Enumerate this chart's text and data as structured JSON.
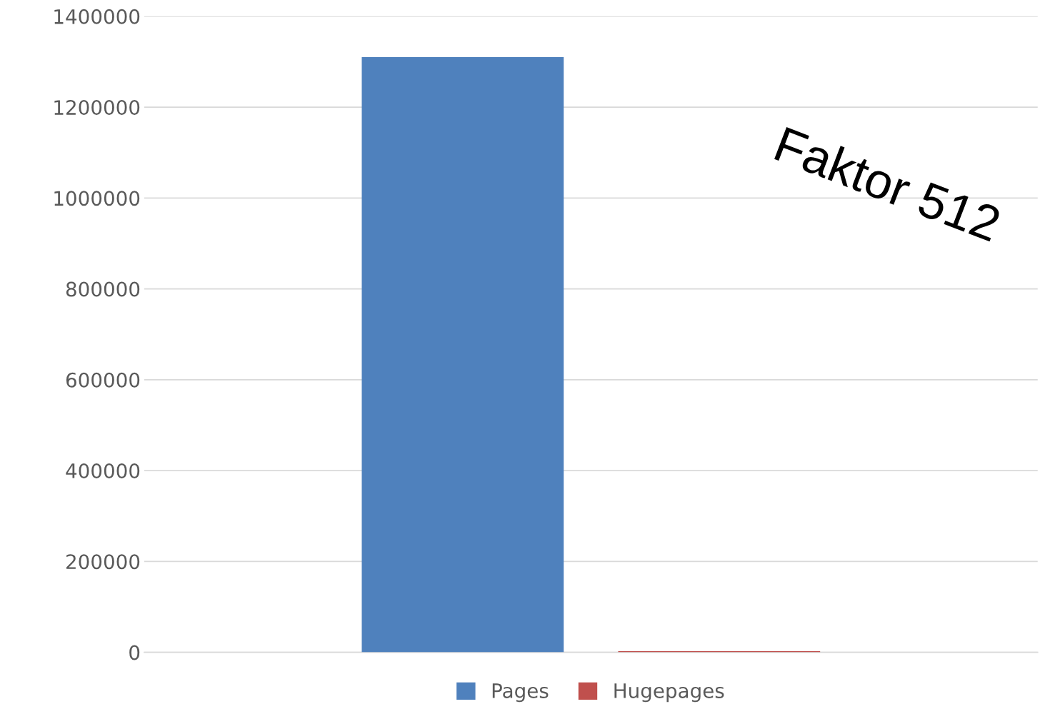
{
  "chart_data": {
    "type": "bar",
    "categories": [
      null
    ],
    "series": [
      {
        "name": "Pages",
        "color": "#4f81bd",
        "values": [
          1310000
        ]
      },
      {
        "name": "Hugepages",
        "color": "#c0504d",
        "values": [
          2560
        ]
      }
    ],
    "ylim": [
      0,
      1400000
    ],
    "yticks": [
      0,
      200000,
      400000,
      600000,
      800000,
      1000000,
      1200000,
      1400000
    ],
    "grid": "y",
    "legend": "bottom",
    "annotations": [
      "Faktor 512"
    ]
  }
}
